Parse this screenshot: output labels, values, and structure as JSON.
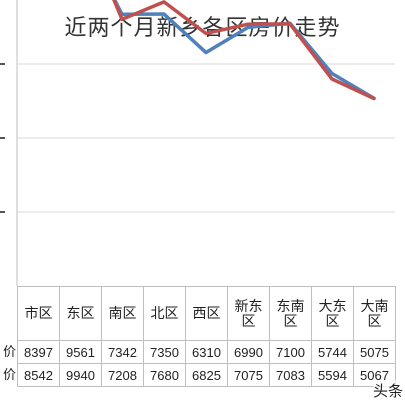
{
  "chart_data": {
    "type": "line",
    "title": "近两个月新乡各区房价走势",
    "categories": [
      "市区",
      "东区",
      "南区",
      "北区",
      "西区",
      "新东区",
      "东南区",
      "大东区",
      "大南区"
    ],
    "series": [
      {
        "name": "价",
        "color": "#4F81BD",
        "values": [
          8397,
          9561,
          7342,
          7350,
          6310,
          6990,
          7100,
          5744,
          5075
        ]
      },
      {
        "name": "价",
        "color": "#C0504D",
        "values": [
          8542,
          9940,
          7208,
          7680,
          6825,
          7075,
          7083,
          5594,
          5067
        ]
      }
    ],
    "ylim": [
      0,
      12000
    ],
    "grid": true
  },
  "watermark": "头条"
}
